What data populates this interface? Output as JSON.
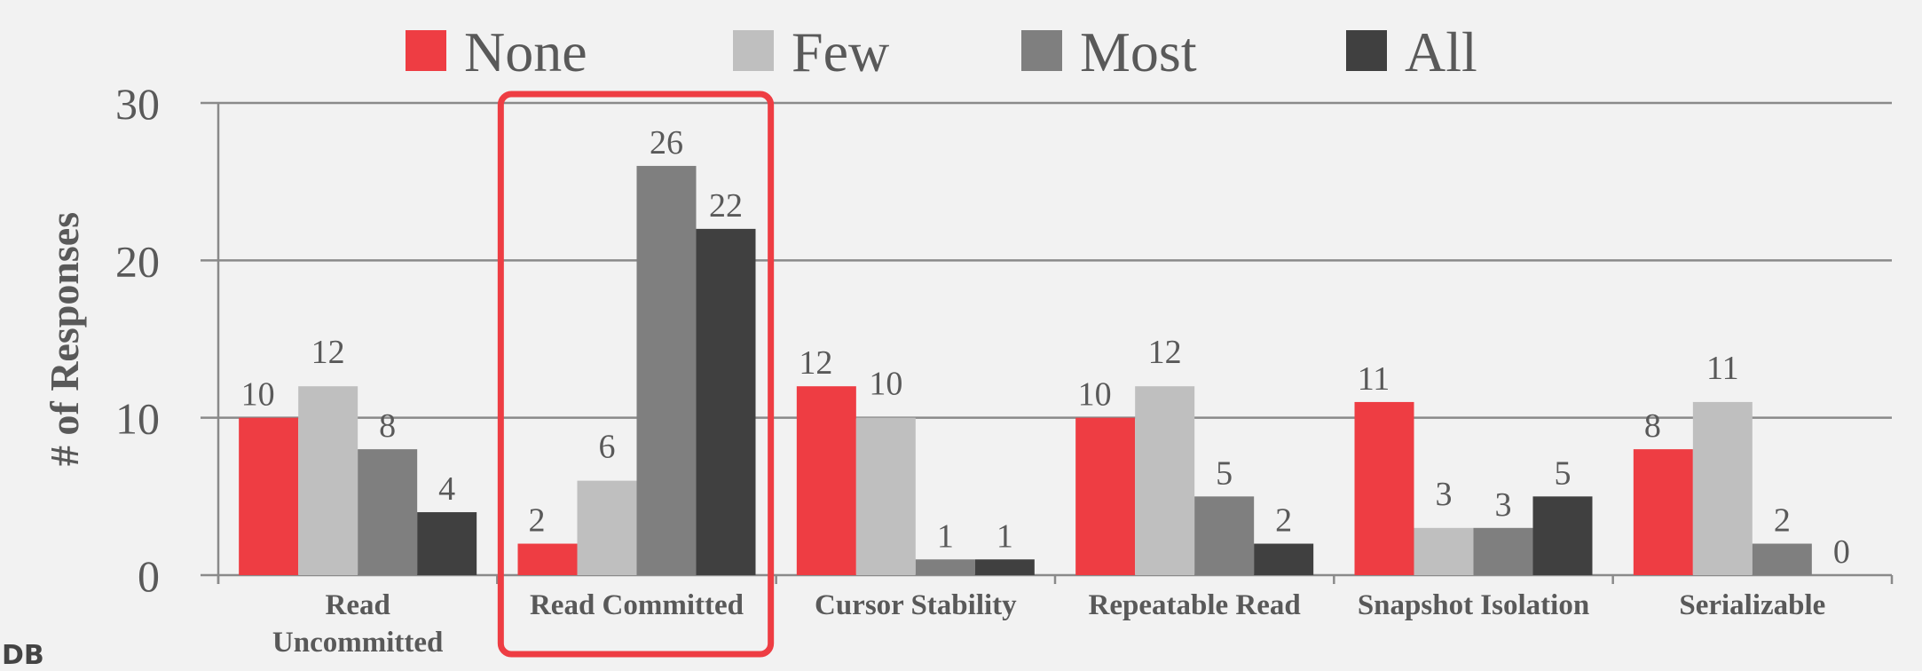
{
  "chart_data": {
    "type": "bar",
    "title": "",
    "xlabel": "",
    "ylabel": "# of Responses",
    "ylim": [
      0,
      30
    ],
    "yticks": [
      0,
      10,
      20,
      30
    ],
    "grid": true,
    "legend_position": "top",
    "categories": [
      [
        "Read",
        "Uncommitted"
      ],
      [
        "Read Committed"
      ],
      [
        "Cursor Stability"
      ],
      [
        "Repeatable Read"
      ],
      [
        "Snapshot Isolation"
      ],
      [
        "Serializable"
      ]
    ],
    "series": [
      {
        "name": "None",
        "color": "#ee3d43",
        "values": [
          10,
          2,
          12,
          10,
          11,
          8
        ]
      },
      {
        "name": "Few",
        "color": "#bfbfbf",
        "values": [
          12,
          6,
          10,
          12,
          3,
          11
        ]
      },
      {
        "name": "Most",
        "color": "#7f7f7f",
        "values": [
          8,
          26,
          1,
          5,
          3,
          2
        ]
      },
      {
        "name": "All",
        "color": "#404040",
        "values": [
          4,
          22,
          1,
          2,
          5,
          0
        ]
      }
    ],
    "highlight": {
      "category": "Read Committed",
      "color": "#ee3d43"
    }
  },
  "logo": "DB"
}
